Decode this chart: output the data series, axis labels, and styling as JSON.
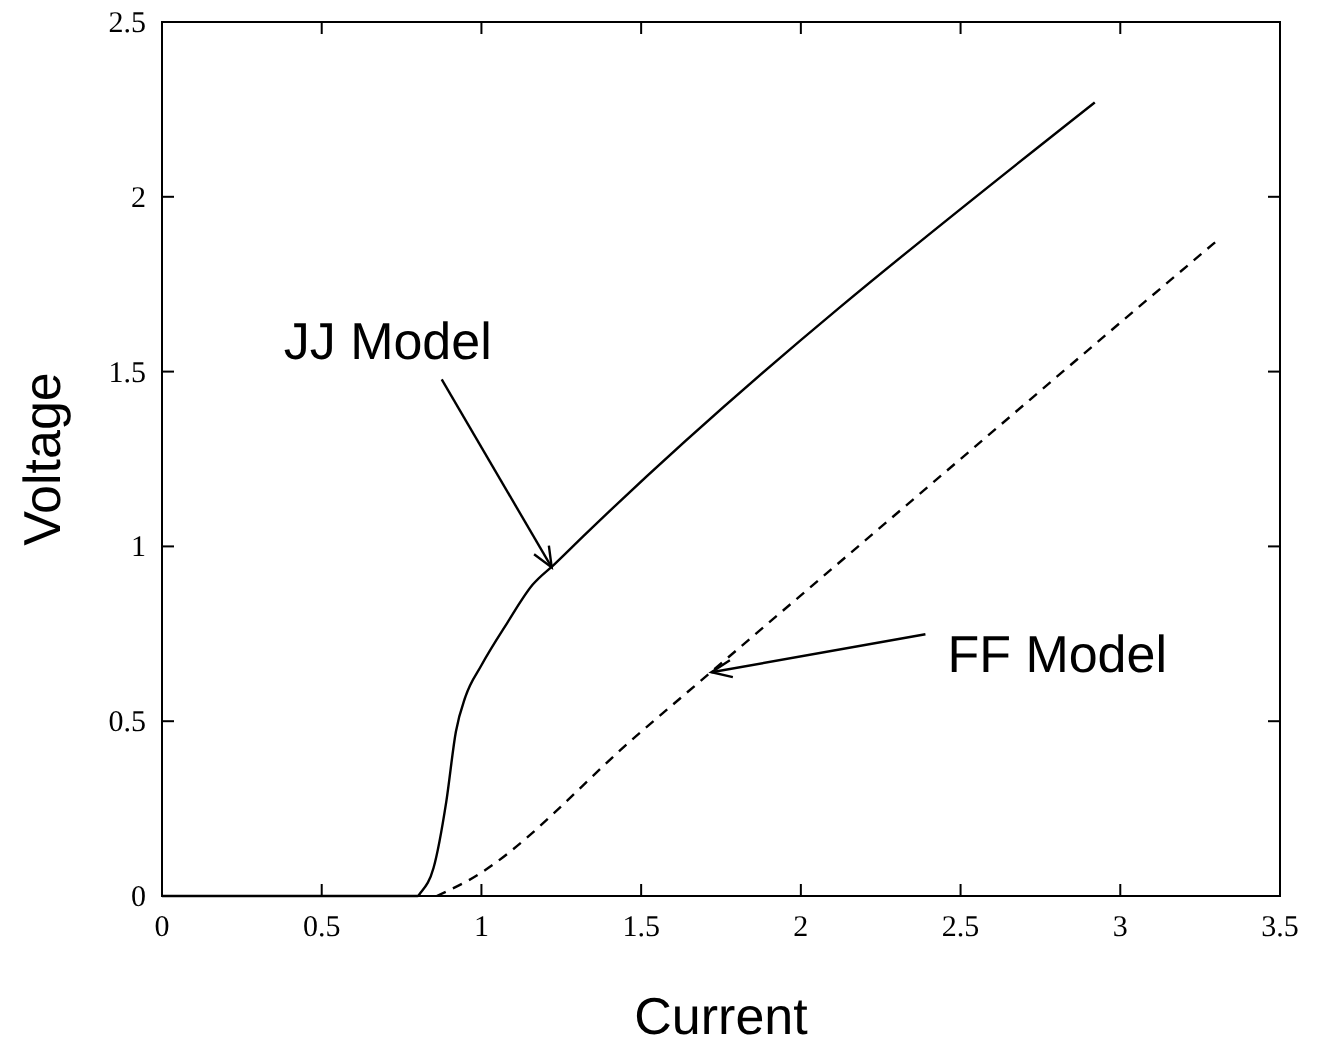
{
  "chart_data": {
    "type": "line",
    "xlabel": "Current",
    "ylabel": "Voltage",
    "xlim": [
      0,
      3.5
    ],
    "ylim": [
      0,
      2.5
    ],
    "xticks": [
      0,
      0.5,
      1,
      1.5,
      2,
      2.5,
      3,
      3.5
    ],
    "yticks": [
      0,
      0.5,
      1,
      1.5,
      2,
      2.5
    ],
    "grid": false,
    "marker": "none",
    "series": [
      {
        "color": "#000000",
        "line_style": "solid",
        "x": [
          0,
          0.8,
          0.81,
          0.85,
          0.89,
          0.92,
          0.95,
          1.0,
          1.08,
          1.16,
          1.23,
          1.32,
          2.92
        ],
        "values": [
          0,
          0,
          0.01,
          0.08,
          0.27,
          0.47,
          0.57,
          0.66,
          0.78,
          0.89,
          0.95,
          1.03,
          2.27
        ]
      },
      {
        "color": "#000000",
        "line_style": "dashed",
        "x": [
          0.86,
          0.95,
          1.5,
          2,
          2.5,
          3,
          3.31
        ],
        "values": [
          0,
          0.04,
          0.47,
          0.86,
          1.25,
          1.64,
          1.88
        ]
      }
    ],
    "annotations": [
      {
        "text": "JJ Model",
        "x": 1.22,
        "y": 0.94
      },
      {
        "text": "FF Model",
        "x": 1.72,
        "y": 0.64
      }
    ]
  }
}
